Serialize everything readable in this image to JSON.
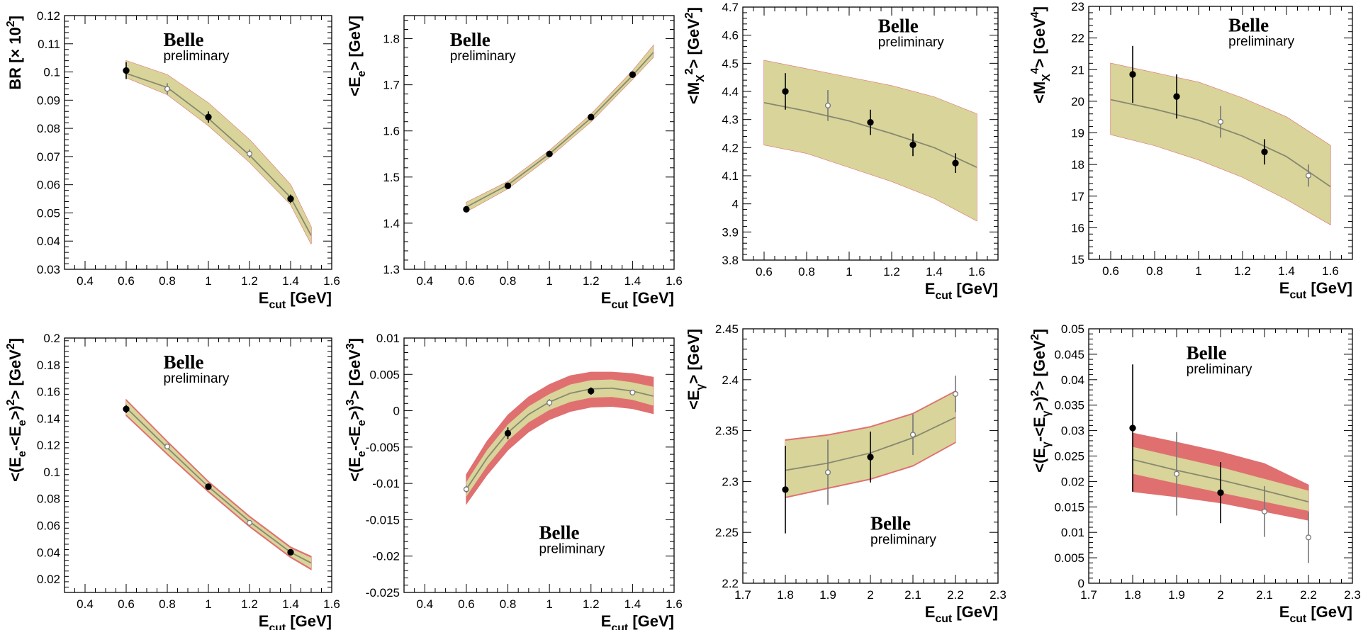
{
  "colors": {
    "outer_band": "#e07070",
    "inner_band": "#d8d49a",
    "fit_line": "#888870",
    "frame": "#000000"
  },
  "chart_data": [
    {
      "id": "br",
      "type": "line",
      "ylabel": "BR [× 10²]",
      "xlabel": "E_cut [GeV]",
      "xlim": [
        0.3,
        1.6
      ],
      "ylim": [
        0.03,
        0.12
      ],
      "xticks": [
        0.4,
        0.6,
        0.8,
        1,
        1.2,
        1.4,
        1.6
      ],
      "xticklabels": [
        "0.4",
        "0.6",
        "0.8",
        "1",
        "1.2",
        "1.4",
        "1.6"
      ],
      "yticks": [
        0.03,
        0.04,
        0.05,
        0.06,
        0.07,
        0.08,
        0.09,
        0.1,
        0.11,
        0.12
      ],
      "yticklabels": [
        "0.03",
        "0.04",
        "0.05",
        "0.06",
        "0.07",
        "0.08",
        "0.09",
        "0.1",
        "0.11",
        "0.12"
      ],
      "watermark": {
        "title": "Belle",
        "subtitle": "preliminary",
        "position": "top-center"
      },
      "fit": {
        "x": [
          0.6,
          0.8,
          1.0,
          1.2,
          1.4,
          1.5
        ],
        "y": [
          0.0995,
          0.0945,
          0.0835,
          0.0705,
          0.0555,
          0.042
        ],
        "inner_lo": [
          0.098,
          0.092,
          0.081,
          0.068,
          0.053,
          0.039
        ],
        "inner_hi": [
          0.104,
          0.099,
          0.089,
          0.076,
          0.06,
          0.045
        ],
        "outer_lo": [
          0.098,
          0.092,
          0.081,
          0.068,
          0.053,
          0.039
        ],
        "outer_hi": [
          0.104,
          0.099,
          0.089,
          0.076,
          0.06,
          0.045
        ]
      },
      "points": [
        {
          "x": 0.6,
          "y": 0.1005,
          "err": 0.003,
          "filled": true
        },
        {
          "x": 0.8,
          "y": 0.094,
          "err": 0.002,
          "filled": false
        },
        {
          "x": 1.0,
          "y": 0.084,
          "err": 0.002,
          "filled": true
        },
        {
          "x": 1.2,
          "y": 0.071,
          "err": 0.0015,
          "filled": false
        },
        {
          "x": 1.4,
          "y": 0.055,
          "err": 0.0015,
          "filled": true
        }
      ]
    },
    {
      "id": "mean-ee",
      "type": "line",
      "ylabel": "<E_e> [GeV]",
      "xlabel": "E_cut [GeV]",
      "xlim": [
        0.3,
        1.6
      ],
      "ylim": [
        1.3,
        1.85
      ],
      "xticks": [
        0.4,
        0.6,
        0.8,
        1,
        1.2,
        1.4,
        1.6
      ],
      "xticklabels": [
        "0.4",
        "0.6",
        "0.8",
        "1",
        "1.2",
        "1.4",
        "1.6"
      ],
      "yticks": [
        1.3,
        1.4,
        1.5,
        1.6,
        1.7,
        1.8
      ],
      "yticklabels": [
        "1.3",
        "1.4",
        "1.5",
        "1.6",
        "1.7",
        "1.8"
      ],
      "watermark": {
        "title": "Belle",
        "subtitle": "preliminary",
        "position": "top-left"
      },
      "fit": {
        "x": [
          0.6,
          0.8,
          1.0,
          1.2,
          1.4,
          1.5
        ],
        "y": [
          1.435,
          1.483,
          1.55,
          1.628,
          1.72,
          1.77
        ],
        "inner_lo": [
          1.425,
          1.475,
          1.543,
          1.62,
          1.712,
          1.76
        ],
        "inner_hi": [
          1.445,
          1.49,
          1.557,
          1.636,
          1.73,
          1.785
        ],
        "outer_lo": [
          1.425,
          1.475,
          1.543,
          1.62,
          1.712,
          1.76
        ],
        "outer_hi": [
          1.445,
          1.49,
          1.557,
          1.636,
          1.73,
          1.785
        ]
      },
      "points": [
        {
          "x": 0.6,
          "y": 1.43,
          "err": 0.006,
          "filled": true
        },
        {
          "x": 0.8,
          "y": 1.481,
          "err": 0.006,
          "filled": true
        },
        {
          "x": 1.0,
          "y": 1.55,
          "err": 0.003,
          "filled": true
        },
        {
          "x": 1.2,
          "y": 1.63,
          "err": 0.003,
          "filled": true
        },
        {
          "x": 1.4,
          "y": 1.722,
          "err": 0.003,
          "filled": true
        }
      ]
    },
    {
      "id": "mean-mx2",
      "type": "line",
      "ylabel": "<M_X²> [GeV²]",
      "xlabel": "E_cut [GeV]",
      "xlim": [
        0.5,
        1.7
      ],
      "ylim": [
        3.8,
        4.7
      ],
      "xticks": [
        0.6,
        0.8,
        1,
        1.2,
        1.4,
        1.6
      ],
      "xticklabels": [
        "0.6",
        "0.8",
        "1",
        "1.2",
        "1.4",
        "1.6"
      ],
      "yticks": [
        3.8,
        3.9,
        4.0,
        4.1,
        4.2,
        4.3,
        4.4,
        4.5,
        4.6,
        4.7
      ],
      "yticklabels": [
        "3.8",
        "3.9",
        "4",
        "4.1",
        "4.2",
        "4.3",
        "4.4",
        "4.5",
        "4.6",
        "4.7"
      ],
      "watermark": {
        "title": "Belle",
        "subtitle": "preliminary",
        "position": "top-right"
      },
      "fit": {
        "x": [
          0.6,
          0.8,
          1.0,
          1.2,
          1.4,
          1.6
        ],
        "y": [
          4.36,
          4.33,
          4.295,
          4.25,
          4.2,
          4.13
        ],
        "inner_lo": [
          4.21,
          4.18,
          4.13,
          4.08,
          4.02,
          3.94
        ],
        "inner_hi": [
          4.51,
          4.48,
          4.45,
          4.42,
          4.38,
          4.32
        ],
        "outer_lo": [
          4.21,
          4.18,
          4.13,
          4.08,
          4.02,
          3.94
        ],
        "outer_hi": [
          4.51,
          4.48,
          4.45,
          4.42,
          4.38,
          4.32
        ]
      },
      "points": [
        {
          "x": 0.7,
          "y": 4.4,
          "err": 0.065,
          "filled": true
        },
        {
          "x": 0.9,
          "y": 4.35,
          "err": 0.055,
          "filled": false
        },
        {
          "x": 1.1,
          "y": 4.29,
          "err": 0.045,
          "filled": true
        },
        {
          "x": 1.3,
          "y": 4.21,
          "err": 0.04,
          "filled": true
        },
        {
          "x": 1.5,
          "y": 4.145,
          "err": 0.035,
          "filled": true
        }
      ]
    },
    {
      "id": "mean-mx4",
      "type": "line",
      "ylabel": "<M_X⁴> [GeV⁴]",
      "xlabel": "E_cut [GeV]",
      "xlim": [
        0.5,
        1.7
      ],
      "ylim": [
        15,
        23
      ],
      "xticks": [
        0.6,
        0.8,
        1,
        1.2,
        1.4,
        1.6
      ],
      "xticklabels": [
        "0.6",
        "0.8",
        "1",
        "1.2",
        "1.4",
        "1.6"
      ],
      "yticks": [
        15,
        16,
        17,
        18,
        19,
        20,
        21,
        22,
        23
      ],
      "yticklabels": [
        "15",
        "16",
        "17",
        "18",
        "19",
        "20",
        "21",
        "22",
        "23"
      ],
      "watermark": {
        "title": "Belle",
        "subtitle": "preliminary",
        "position": "top-right"
      },
      "fit": {
        "x": [
          0.6,
          0.8,
          1.0,
          1.2,
          1.4,
          1.6
        ],
        "y": [
          20.05,
          19.75,
          19.4,
          18.9,
          18.25,
          17.3
        ],
        "inner_lo": [
          18.95,
          18.6,
          18.15,
          17.6,
          16.9,
          16.1
        ],
        "inner_hi": [
          21.2,
          20.9,
          20.6,
          20.1,
          19.5,
          18.6
        ],
        "outer_lo": [
          18.95,
          18.6,
          18.15,
          17.6,
          16.9,
          16.1
        ],
        "outer_hi": [
          21.2,
          20.9,
          20.6,
          20.1,
          19.5,
          18.6
        ]
      },
      "points": [
        {
          "x": 0.7,
          "y": 20.85,
          "err": 0.9,
          "filled": true
        },
        {
          "x": 0.9,
          "y": 20.15,
          "err": 0.7,
          "filled": true
        },
        {
          "x": 1.1,
          "y": 19.35,
          "err": 0.5,
          "filled": false
        },
        {
          "x": 1.3,
          "y": 18.4,
          "err": 0.4,
          "filled": true
        },
        {
          "x": 1.5,
          "y": 17.65,
          "err": 0.35,
          "filled": false
        }
      ]
    },
    {
      "id": "var-ee",
      "type": "line",
      "ylabel": "<(E_e-<E_e>)²> [GeV²]",
      "xlabel": "E_cut [GeV]",
      "xlim": [
        0.3,
        1.6
      ],
      "ylim": [
        0.01,
        0.2
      ],
      "xticks": [
        0.4,
        0.6,
        0.8,
        1,
        1.2,
        1.4,
        1.6
      ],
      "xticklabels": [
        "0.4",
        "0.6",
        "0.8",
        "1",
        "1.2",
        "1.4",
        "1.6"
      ],
      "yticks": [
        0.02,
        0.04,
        0.06,
        0.08,
        0.1,
        0.12,
        0.14,
        0.16,
        0.18,
        0.2
      ],
      "yticklabels": [
        "0.02",
        "0.04",
        "0.06",
        "0.08",
        "0.1",
        "0.12",
        "0.14",
        "0.16",
        "0.18",
        "0.2"
      ],
      "watermark": {
        "title": "Belle",
        "subtitle": "preliminary",
        "position": "top-center"
      },
      "fit": {
        "x": [
          0.6,
          0.8,
          1.0,
          1.2,
          1.4,
          1.5
        ],
        "y": [
          0.148,
          0.118,
          0.089,
          0.063,
          0.04,
          0.032
        ],
        "inner_lo": [
          0.143,
          0.114,
          0.086,
          0.06,
          0.037,
          0.028
        ],
        "inner_hi": [
          0.153,
          0.122,
          0.092,
          0.066,
          0.043,
          0.036
        ],
        "outer_lo": [
          0.142,
          0.113,
          0.085,
          0.059,
          0.036,
          0.027
        ],
        "outer_hi": [
          0.154,
          0.123,
          0.093,
          0.067,
          0.044,
          0.037
        ]
      },
      "points": [
        {
          "x": 0.6,
          "y": 0.147,
          "err": 0.003,
          "filled": true
        },
        {
          "x": 0.8,
          "y": 0.119,
          "err": 0.002,
          "filled": false
        },
        {
          "x": 1.0,
          "y": 0.089,
          "err": 0.002,
          "filled": true
        },
        {
          "x": 1.2,
          "y": 0.062,
          "err": 0.001,
          "filled": false
        },
        {
          "x": 1.4,
          "y": 0.04,
          "err": 0.001,
          "filled": true
        }
      ]
    },
    {
      "id": "skew-ee",
      "type": "line",
      "ylabel": "<(E_e-<E_e>)³> [GeV³]",
      "xlabel": "E_cut [GeV]",
      "xlim": [
        0.3,
        1.6
      ],
      "ylim": [
        -0.025,
        0.01
      ],
      "xticks": [
        0.4,
        0.6,
        0.8,
        1,
        1.2,
        1.4,
        1.6
      ],
      "xticklabels": [
        "0.4",
        "0.6",
        "0.8",
        "1",
        "1.2",
        "1.4",
        "1.6"
      ],
      "yticks": [
        -0.025,
        -0.02,
        -0.015,
        -0.01,
        -0.005,
        0,
        0.005,
        0.01
      ],
      "yticklabels": [
        "-0.025",
        "-0.02",
        "-0.015",
        "-0.01",
        "-0.005",
        "0",
        "0.005",
        "0.01"
      ],
      "watermark": {
        "title": "Belle",
        "subtitle": "preliminary",
        "position": "bottom-right"
      },
      "fit": {
        "x": [
          0.6,
          0.7,
          0.8,
          0.9,
          1.0,
          1.1,
          1.2,
          1.3,
          1.4,
          1.5
        ],
        "y": [
          -0.0108,
          -0.0065,
          -0.003,
          -0.0005,
          0.0012,
          0.0024,
          0.003,
          0.0031,
          0.0027,
          0.002
        ],
        "inner_lo": [
          -0.0118,
          -0.0076,
          -0.0041,
          -0.0016,
          0.0001,
          0.0012,
          0.0018,
          0.0019,
          0.0015,
          0.0007
        ],
        "inner_hi": [
          -0.0098,
          -0.0054,
          -0.0019,
          0.0006,
          0.0023,
          0.0036,
          0.0042,
          0.0043,
          0.0039,
          0.0033
        ],
        "outer_lo": [
          -0.0128,
          -0.0088,
          -0.0054,
          -0.0029,
          -0.0012,
          -0.0001,
          0.0005,
          0.0006,
          0.0003,
          -0.0004
        ],
        "outer_hi": [
          -0.0088,
          -0.0042,
          -0.0006,
          0.0019,
          0.0036,
          0.0048,
          0.0053,
          0.0053,
          0.0051,
          0.0046
        ]
      },
      "points": [
        {
          "x": 0.6,
          "y": -0.0108,
          "err": 0.0005,
          "filled": false
        },
        {
          "x": 0.8,
          "y": -0.0031,
          "err": 0.0008,
          "filled": true
        },
        {
          "x": 1.0,
          "y": 0.0011,
          "err": 0.0005,
          "filled": false
        },
        {
          "x": 1.2,
          "y": 0.0027,
          "err": 0.0005,
          "filled": true
        },
        {
          "x": 1.4,
          "y": 0.0025,
          "err": 0.0003,
          "filled": false
        }
      ]
    },
    {
      "id": "mean-egamma",
      "type": "line",
      "ylabel": "<E_γ> [GeV]",
      "xlabel": "E_cut [GeV]",
      "xlim": [
        1.7,
        2.3
      ],
      "ylim": [
        2.2,
        2.45
      ],
      "xticks": [
        1.7,
        1.8,
        1.9,
        2,
        2.1,
        2.2,
        2.3
      ],
      "xticklabels": [
        "1.7",
        "1.8",
        "1.9",
        "2",
        "2.1",
        "2.2",
        "2.3"
      ],
      "yticks": [
        2.2,
        2.25,
        2.3,
        2.35,
        2.4,
        2.45
      ],
      "yticklabels": [
        "2.2",
        "2.25",
        "2.3",
        "2.35",
        "2.4",
        "2.45"
      ],
      "watermark": {
        "title": "Belle",
        "subtitle": "preliminary",
        "position": "bottom-right"
      },
      "fit": {
        "x": [
          1.8,
          1.9,
          2.0,
          2.1,
          2.2
        ],
        "y": [
          2.311,
          2.318,
          2.328,
          2.343,
          2.363
        ],
        "inner_lo": [
          2.285,
          2.294,
          2.303,
          2.316,
          2.339
        ],
        "inner_hi": [
          2.34,
          2.345,
          2.353,
          2.366,
          2.388
        ],
        "outer_lo": [
          2.284,
          2.293,
          2.302,
          2.315,
          2.338
        ],
        "outer_hi": [
          2.341,
          2.346,
          2.354,
          2.367,
          2.389
        ]
      },
      "points": [
        {
          "x": 1.8,
          "y": 2.292,
          "err": 0.043,
          "filled": true
        },
        {
          "x": 1.9,
          "y": 2.309,
          "err": 0.032,
          "filled": false
        },
        {
          "x": 2.0,
          "y": 2.324,
          "err": 0.025,
          "filled": true
        },
        {
          "x": 2.1,
          "y": 2.346,
          "err": 0.02,
          "filled": false
        },
        {
          "x": 2.2,
          "y": 2.386,
          "err": 0.018,
          "filled": false
        }
      ]
    },
    {
      "id": "var-egamma",
      "type": "line",
      "ylabel": "<(E_γ-<E_γ>)²> [GeV²]",
      "xlabel": "E_cut [GeV]",
      "xlim": [
        1.7,
        2.3
      ],
      "ylim": [
        0,
        0.05
      ],
      "xticks": [
        1.7,
        1.8,
        1.9,
        2,
        2.1,
        2.2,
        2.3
      ],
      "xticklabels": [
        "1.7",
        "1.8",
        "1.9",
        "2",
        "2.1",
        "2.2",
        "2.3"
      ],
      "yticks": [
        0,
        0.005,
        0.01,
        0.015,
        0.02,
        0.025,
        0.03,
        0.035,
        0.04,
        0.045,
        0.05
      ],
      "yticklabels": [
        "0",
        "0.005",
        "0.01",
        "0.015",
        "0.02",
        "0.025",
        "0.03",
        "0.035",
        "0.04",
        "0.045",
        "0.05"
      ],
      "watermark": {
        "title": "Belle",
        "subtitle": "preliminary",
        "position": "top-center"
      },
      "fit": {
        "x": [
          1.8,
          1.9,
          2.0,
          2.1,
          2.2
        ],
        "y": [
          0.0243,
          0.0222,
          0.0203,
          0.0182,
          0.016
        ],
        "inner_lo": [
          0.0215,
          0.0196,
          0.0178,
          0.016,
          0.0142
        ],
        "inner_hi": [
          0.0268,
          0.0248,
          0.0228,
          0.0205,
          0.0182
        ],
        "outer_lo": [
          0.018,
          0.017,
          0.0158,
          0.0141,
          0.0124
        ],
        "outer_hi": [
          0.0295,
          0.0277,
          0.0258,
          0.0235,
          0.0193
        ]
      },
      "points": [
        {
          "x": 1.8,
          "y": 0.0305,
          "err": 0.0125,
          "filled": true
        },
        {
          "x": 1.9,
          "y": 0.0215,
          "err": 0.0082,
          "filled": false
        },
        {
          "x": 2.0,
          "y": 0.0178,
          "err": 0.006,
          "filled": true
        },
        {
          "x": 2.1,
          "y": 0.0141,
          "err": 0.005,
          "filled": false
        },
        {
          "x": 2.2,
          "y": 0.009,
          "err": 0.005,
          "filled": false
        }
      ]
    }
  ]
}
